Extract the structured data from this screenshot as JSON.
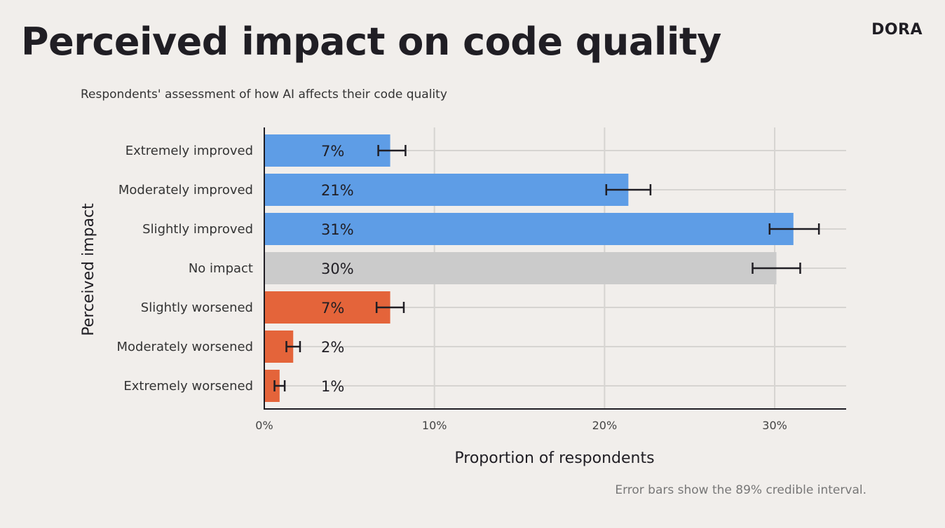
{
  "title": "Perceived impact on code quality",
  "logo": "DORA",
  "subtitle": "Respondents' assessment of how AI affects their code quality",
  "note": "Error bars show the 89% credible interval.",
  "chart_data": {
    "type": "bar",
    "orientation": "horizontal",
    "xlabel": "Proportion of respondents",
    "ylabel": "Perceived impact",
    "xlim": [
      0,
      34.2
    ],
    "xticks": [
      0,
      10,
      20,
      30
    ],
    "xtick_labels": [
      "0%",
      "10%",
      "20%",
      "30%"
    ],
    "grid": true,
    "categories": [
      "Extremely improved",
      "Moderately improved",
      "Slightly improved",
      "No impact",
      "Slightly worsened",
      "Moderately worsened",
      "Extremely worsened"
    ],
    "values": [
      7.4,
      21.4,
      31.1,
      30.1,
      7.4,
      1.7,
      0.9
    ],
    "data_labels": [
      "7%",
      "21%",
      "31%",
      "30%",
      "7%",
      "2%",
      "1%"
    ],
    "error_low": [
      6.7,
      20.1,
      29.7,
      28.7,
      6.6,
      1.3,
      0.6
    ],
    "error_high": [
      8.3,
      22.7,
      32.6,
      31.5,
      8.2,
      2.1,
      1.2
    ],
    "colors": [
      "#5e9de6",
      "#5e9de6",
      "#5e9de6",
      "#cbcbcb",
      "#e4643a",
      "#e4643a",
      "#e4643a"
    ]
  }
}
